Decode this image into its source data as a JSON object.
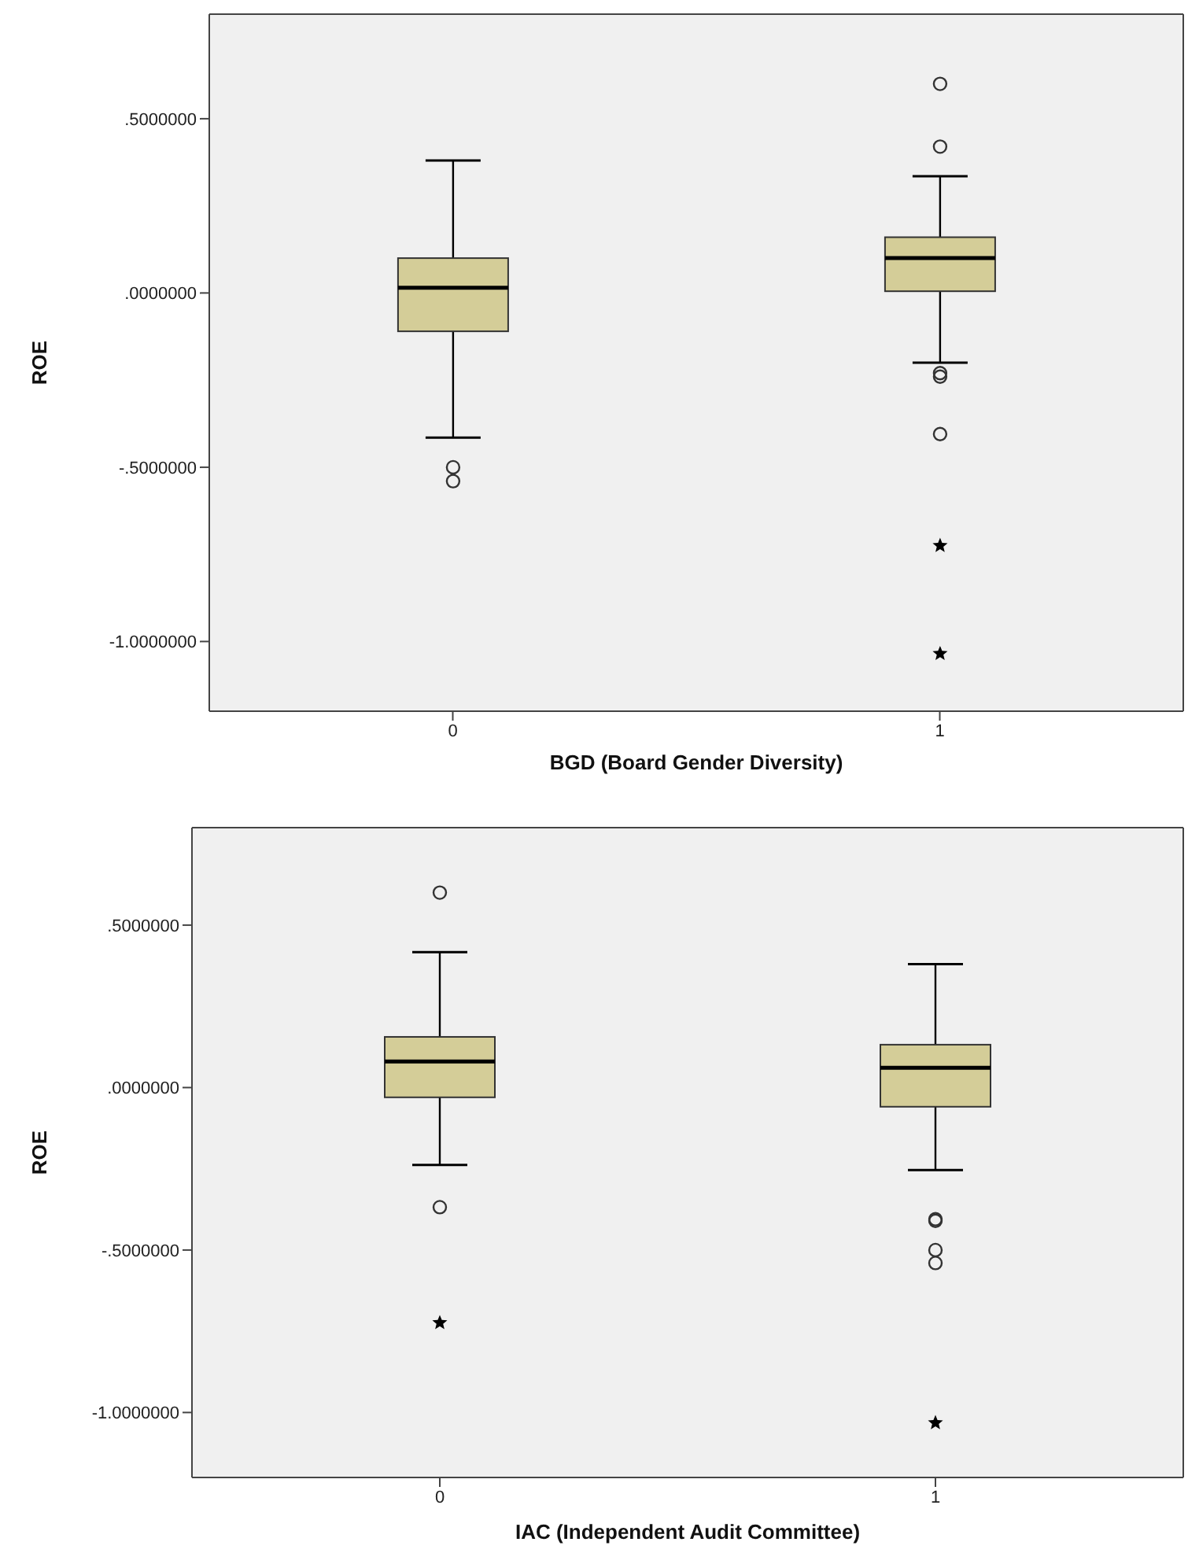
{
  "chart_data": [
    {
      "type": "box",
      "categories": [
        "0",
        "1"
      ],
      "xlabel": "BGD (Board Gender Diversity)",
      "ylabel": "ROE",
      "color": "#d4cd98",
      "ylim": [
        -1.2,
        0.8
      ],
      "yticks": [
        {
          "value": 0.5,
          "label": ".5000000"
        },
        {
          "value": 0,
          "label": ".0000000"
        },
        {
          "value": -0.5,
          "label": "-.5000000"
        },
        {
          "value": -1,
          "label": "-1.0000000"
        }
      ],
      "boxes": [
        {
          "low": -0.415,
          "q1": -0.11,
          "median": 0.015,
          "q3": 0.1,
          "high": 0.38,
          "outliers": [
            -0.5,
            -0.54
          ]
        },
        {
          "low": -0.2,
          "q1": 0.005,
          "median": 0.1,
          "q3": 0.16,
          "high": 0.335,
          "outliers": [
            0.6,
            0.42,
            -0.23,
            -0.24,
            -0.405
          ]
        }
      ],
      "series": [
        {
          "type": "scatter",
          "marker": "star",
          "color": "#000000",
          "x": [
            "1",
            "1"
          ],
          "values": [
            -0.725,
            -1.035
          ]
        }
      ]
    },
    {
      "type": "box",
      "categories": [
        "0",
        "1"
      ],
      "xlabel": "IAC (Independent Audit Committee)",
      "ylabel": "ROE",
      "color": "#d4cd98",
      "ylim": [
        -1.2,
        0.8
      ],
      "yticks": [
        {
          "value": 0.5,
          "label": ".5000000"
        },
        {
          "value": 0,
          "label": ".0000000"
        },
        {
          "value": -0.5,
          "label": "-.5000000"
        },
        {
          "value": -1,
          "label": "-1.0000000"
        }
      ],
      "boxes": [
        {
          "low": -0.238,
          "q1": -0.03,
          "median": 0.08,
          "q3": 0.156,
          "high": 0.417,
          "outliers": [
            0.6,
            -0.368
          ]
        },
        {
          "low": -0.254,
          "q1": -0.059,
          "median": 0.061,
          "q3": 0.132,
          "high": 0.38,
          "outliers": [
            -0.405,
            -0.41,
            -0.5,
            -0.54
          ]
        }
      ],
      "series": [
        {
          "type": "scatter",
          "marker": "star",
          "color": "#000000",
          "x": [
            "0",
            "1"
          ],
          "values": [
            -0.724,
            -1.032
          ]
        }
      ]
    }
  ]
}
